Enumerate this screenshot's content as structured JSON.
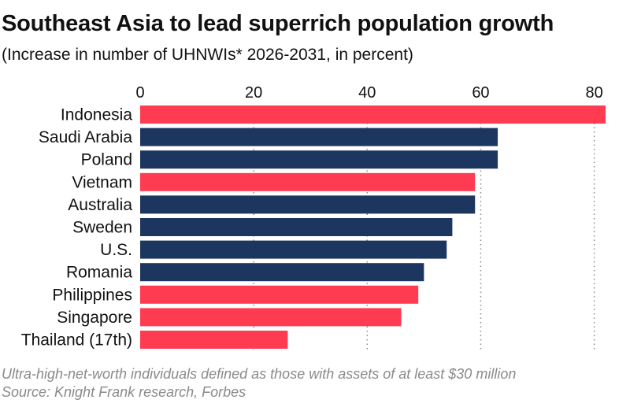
{
  "header": {
    "title": "Southeast Asia to lead superrich population growth",
    "subtitle": "(Increase in number of UHNWIs* 2026-2031, in percent)"
  },
  "footer": {
    "note": "Ultra-high-net-worth individuals defined as those with assets of at least $30 million",
    "source": "Source: Knight Frank research, Forbes"
  },
  "colors": {
    "southeast_asia": "#ff3b52",
    "other": "#1c3660",
    "grid": "#8a8a8a"
  },
  "chart_data": {
    "type": "bar",
    "orientation": "horizontal",
    "title": "Southeast Asia to lead superrich population growth",
    "subtitle": "(Increase in number of UHNWIs* 2026-2031, in percent)",
    "xlim": [
      0,
      85
    ],
    "x_ticks": [
      0,
      20,
      40,
      60,
      80
    ],
    "grid": "vertical dotted",
    "legend": "none",
    "categories": [
      "Indonesia",
      "Saudi Arabia",
      "Poland",
      "Vietnam",
      "Australia",
      "Sweden",
      "U.S.",
      "Romania",
      "Philippines",
      "Singapore",
      "Thailand (17th)"
    ],
    "values": [
      82,
      63,
      63,
      59,
      59,
      55,
      54,
      50,
      49,
      46,
      26
    ],
    "highlight": [
      true,
      false,
      false,
      true,
      false,
      false,
      false,
      false,
      true,
      true,
      true
    ]
  }
}
